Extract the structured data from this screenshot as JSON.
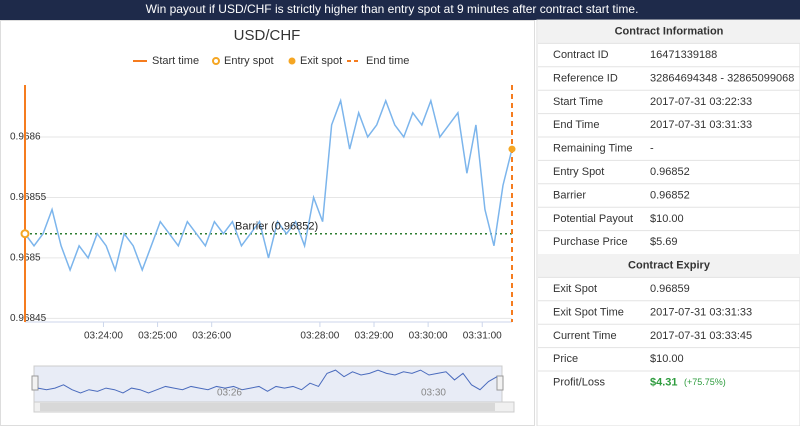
{
  "banner": "Win payout if USD/CHF is strictly higher than entry spot at 9 minutes after contract start time.",
  "chart_data": {
    "type": "line",
    "title": "USD/CHF",
    "color": "#7cb5ec",
    "x": [
      "03:22:33",
      "03:22:43",
      "03:22:53",
      "03:23:03",
      "03:23:13",
      "03:23:23",
      "03:23:33",
      "03:23:43",
      "03:23:53",
      "03:24:03",
      "03:24:13",
      "03:24:23",
      "03:24:33",
      "03:24:43",
      "03:24:53",
      "03:25:03",
      "03:25:13",
      "03:25:23",
      "03:25:33",
      "03:25:43",
      "03:25:53",
      "03:26:03",
      "03:26:13",
      "03:26:23",
      "03:26:33",
      "03:26:43",
      "03:26:53",
      "03:27:03",
      "03:27:13",
      "03:27:23",
      "03:27:33",
      "03:27:43",
      "03:27:53",
      "03:28:03",
      "03:28:13",
      "03:28:23",
      "03:28:33",
      "03:28:43",
      "03:28:53",
      "03:29:03",
      "03:29:13",
      "03:29:23",
      "03:29:33",
      "03:29:43",
      "03:29:53",
      "03:30:03",
      "03:30:13",
      "03:30:23",
      "03:30:33",
      "03:30:43",
      "03:30:53",
      "03:31:03",
      "03:31:13",
      "03:31:23",
      "03:31:33"
    ],
    "values": [
      0.96852,
      0.96851,
      0.96852,
      0.96854,
      0.96851,
      0.96849,
      0.96851,
      0.9685,
      0.96852,
      0.96851,
      0.96849,
      0.96852,
      0.96851,
      0.96849,
      0.96851,
      0.96853,
      0.96852,
      0.96851,
      0.96853,
      0.96852,
      0.96851,
      0.96853,
      0.96852,
      0.96853,
      0.96851,
      0.96852,
      0.96853,
      0.9685,
      0.96853,
      0.96852,
      0.96853,
      0.96851,
      0.96855,
      0.96853,
      0.96861,
      0.96863,
      0.96859,
      0.96862,
      0.9686,
      0.96861,
      0.96863,
      0.96861,
      0.9686,
      0.96862,
      0.96861,
      0.96863,
      0.9686,
      0.96861,
      0.96862,
      0.96857,
      0.96861,
      0.96854,
      0.96851,
      0.96856,
      0.96859
    ],
    "xlim": [
      "03:22:33",
      "03:31:33"
    ],
    "xticks": [
      "03:24:00",
      "03:25:00",
      "03:26:00",
      "03:28:00",
      "03:29:00",
      "03:30:00",
      "03:31:00"
    ],
    "ylim": [
      0.968447,
      0.968643
    ],
    "yticks": [
      0.96845,
      0.9685,
      0.96855,
      0.9686
    ],
    "grid": true,
    "barrier": {
      "label": "Barrier (0.96852)",
      "value": 0.96852,
      "color": "#2e7d32"
    },
    "markers": [
      {
        "name": "Start time",
        "x": "03:22:33",
        "color": "#f57c1f"
      },
      {
        "name": "Entry spot",
        "x": "03:22:33",
        "value": 0.96852,
        "color": "#f5a623"
      },
      {
        "name": "Exit spot",
        "x": "03:31:33",
        "value": 0.96859,
        "color": "#f5a623"
      },
      {
        "name": "End time",
        "x": "03:31:33",
        "color": "#f57c1f"
      }
    ],
    "navigator_labels": [
      "03:26",
      "03:30"
    ]
  },
  "contract": {
    "sections": [
      {
        "title": "Contract Information",
        "rows": [
          [
            "Contract ID",
            "16471339188"
          ],
          [
            "Reference ID",
            "32864694348 - 32865099068"
          ],
          [
            "Start Time",
            "2017-07-31 03:22:33"
          ],
          [
            "End Time",
            "2017-07-31 03:31:33"
          ],
          [
            "Remaining Time",
            "-"
          ],
          [
            "Entry Spot",
            "0.96852"
          ],
          [
            "Barrier",
            "0.96852"
          ],
          [
            "Potential Payout",
            "$10.00"
          ],
          [
            "Purchase Price",
            "$5.69"
          ]
        ]
      },
      {
        "title": "Contract Expiry",
        "rows": [
          [
            "Exit Spot",
            "0.96859"
          ],
          [
            "Exit Spot Time",
            "2017-07-31 03:31:33"
          ],
          [
            "Current Time",
            "2017-07-31 03:33:45"
          ],
          [
            "Price",
            "$10.00"
          ]
        ]
      }
    ],
    "profit_label": "Profit/Loss",
    "profit": "$4.31",
    "profit_pct": "(+75.75%)"
  }
}
